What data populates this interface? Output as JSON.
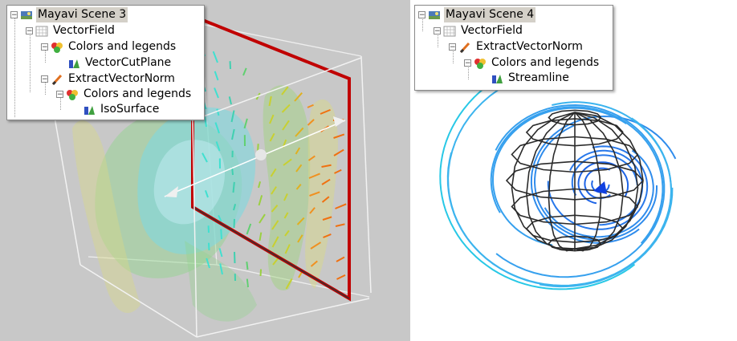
{
  "left_scene": {
    "tree": [
      {
        "id": "scene",
        "label": "Mayavi Scene 3",
        "icon": "scene-icon",
        "expanded": true,
        "selected": true
      },
      {
        "id": "vectorfield",
        "label": "VectorField",
        "icon": "grid-icon",
        "expanded": true
      },
      {
        "id": "colors1",
        "label": "Colors and legends",
        "icon": "colors-icon",
        "expanded": true
      },
      {
        "id": "cutplane",
        "label": "VectorCutPlane",
        "icon": "module-icon"
      },
      {
        "id": "extract",
        "label": "ExtractVectorNorm",
        "icon": "filter-icon",
        "expanded": true
      },
      {
        "id": "colors2",
        "label": "Colors and legends",
        "icon": "colors-icon",
        "expanded": true
      },
      {
        "id": "isosurface",
        "label": "IsoSurface",
        "icon": "module-icon"
      }
    ]
  },
  "right_scene": {
    "tree": [
      {
        "id": "scene",
        "label": "Mayavi Scene 4",
        "icon": "scene-icon",
        "expanded": true,
        "selected": true
      },
      {
        "id": "vectorfield",
        "label": "VectorField",
        "icon": "grid-icon",
        "expanded": true
      },
      {
        "id": "extract",
        "label": "ExtractVectorNorm",
        "icon": "filter-icon",
        "expanded": true
      },
      {
        "id": "colors",
        "label": "Colors and legends",
        "icon": "colors-icon",
        "expanded": true
      },
      {
        "id": "streamline",
        "label": "Streamline",
        "icon": "module-icon"
      }
    ]
  },
  "colors": {
    "left_background": "#c8c8c8",
    "right_background": "#ffffff",
    "cut_plane_outline": "#c00000",
    "outline_box": "#f0f0f0",
    "isosurface_cyan": "#7fd8e0",
    "isosurface_green": "#8fd48a",
    "isosurface_yellow": "#d8d88a",
    "streamline_blue": "#1e64e6",
    "streamline_cyan": "#28c8e6",
    "wire_mesh": "#2a2a2a"
  }
}
